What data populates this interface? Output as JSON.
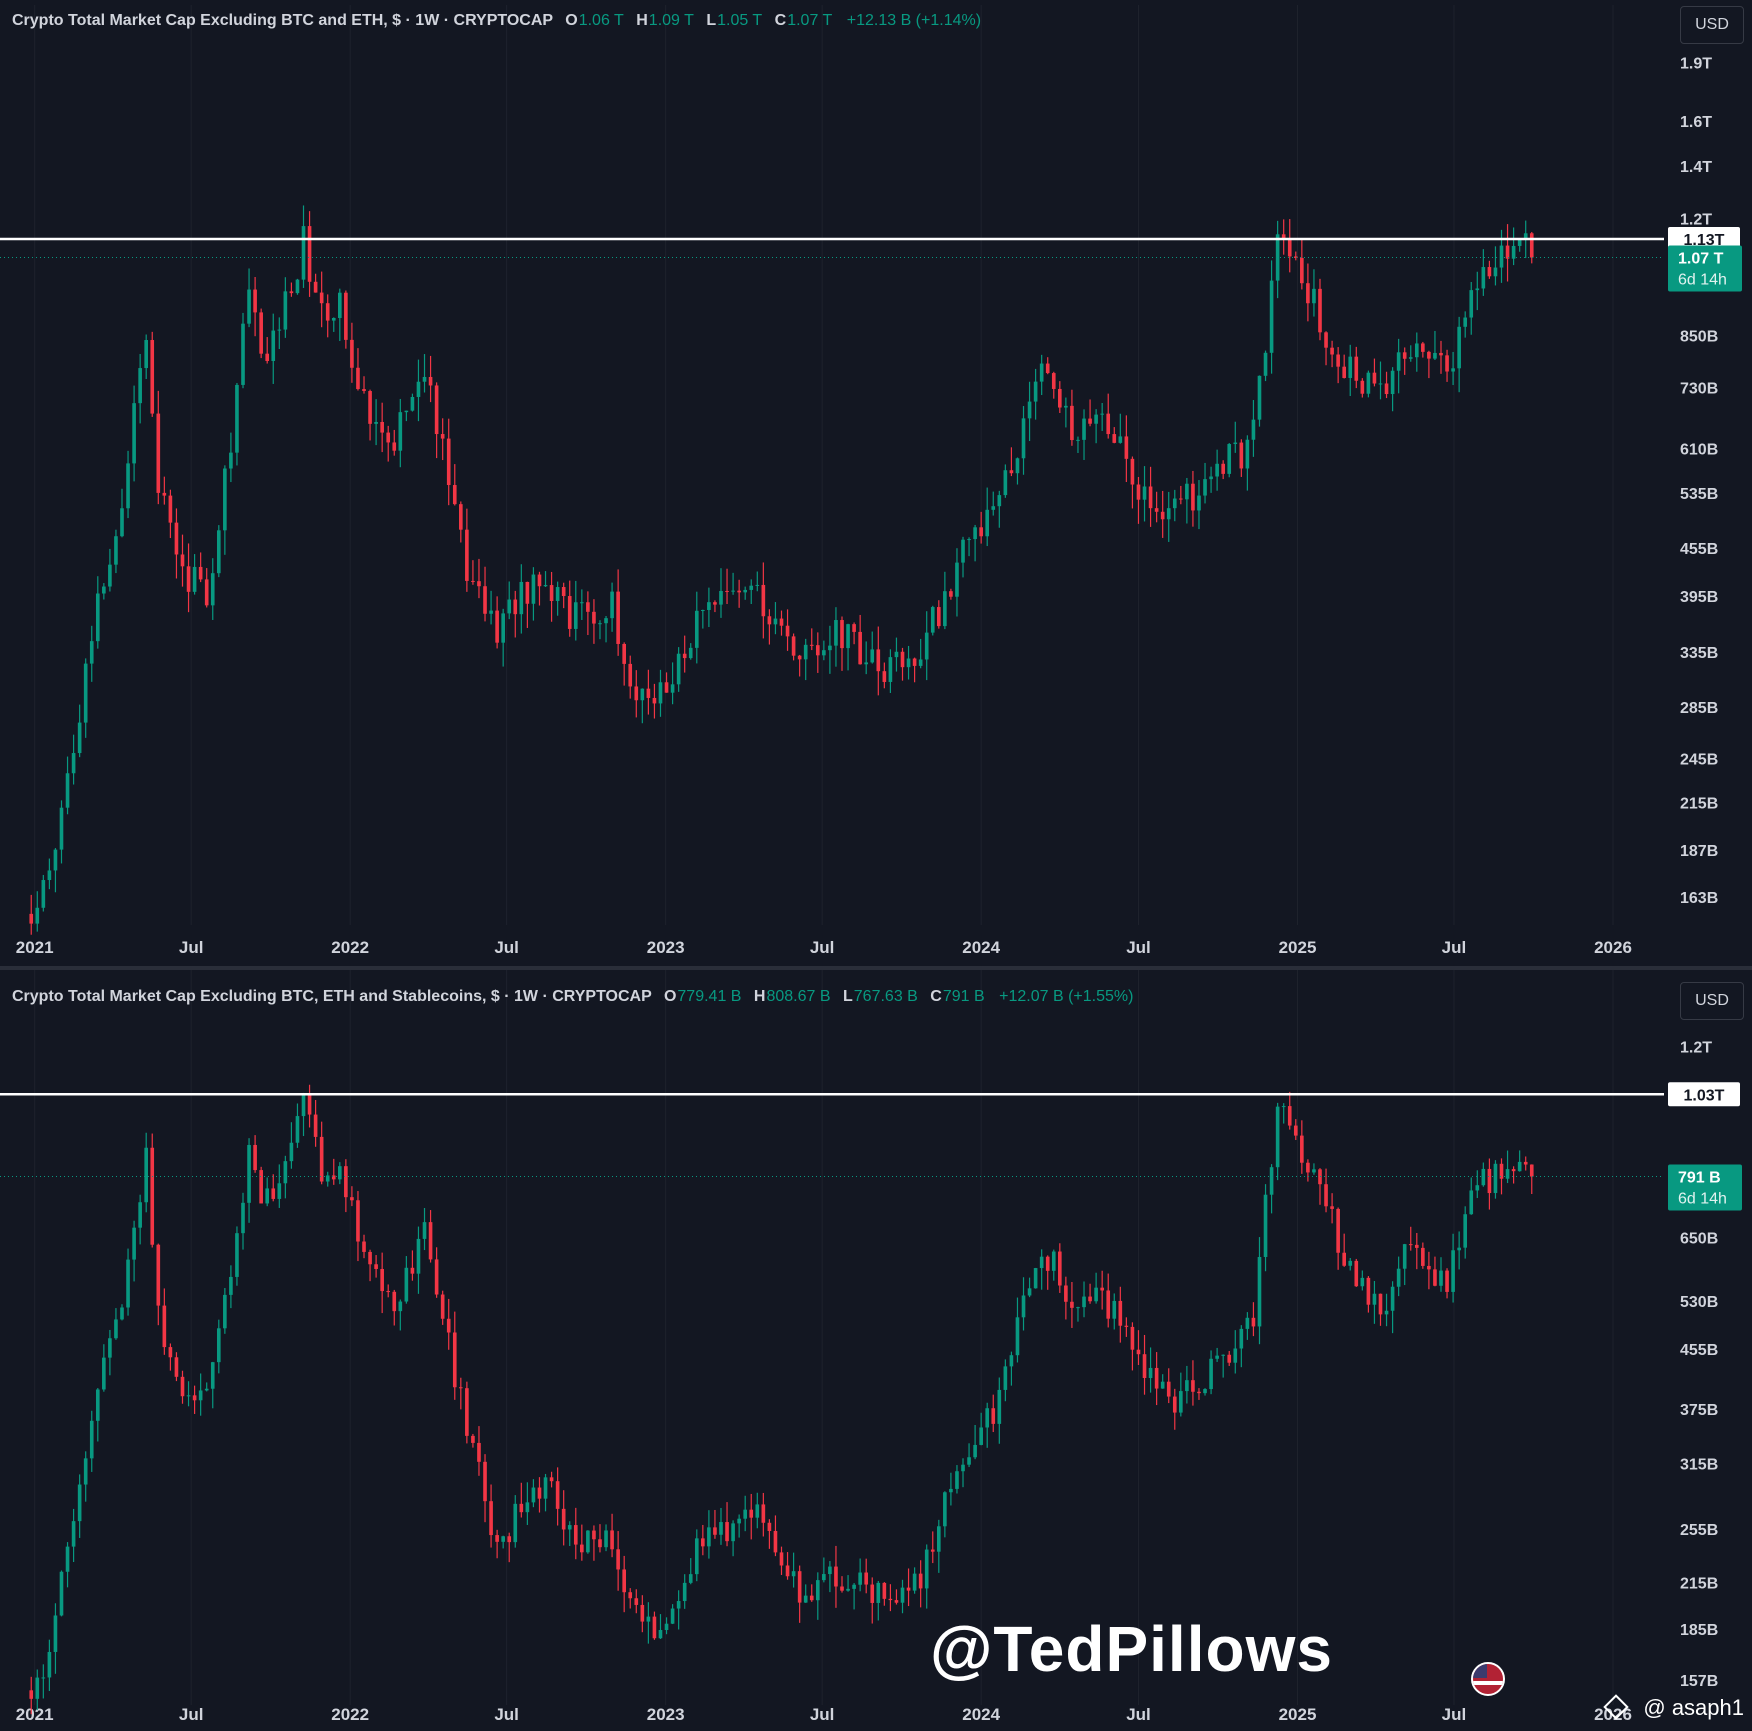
{
  "colors": {
    "background": "#131722",
    "up": "#089981",
    "down": "#f23645",
    "resistance": "#ffffff",
    "grid": "#1e222d"
  },
  "charts": [
    {
      "legend": {
        "title": "Crypto Total Market Cap Excluding BTC and ETH, $ · 1W · CRYPTOCAP",
        "o_label": "O",
        "o": "1.06 T",
        "h_label": "H",
        "h": "1.09 T",
        "l_label": "L",
        "l": "1.05 T",
        "c_label": "C",
        "c": "1.07 T",
        "change": "+12.13 B (+1.14%)"
      },
      "currency_button": "USD",
      "y_ticks": [
        "1.9T",
        "1.6T",
        "1.4T",
        "1.2T",
        "850B",
        "730B",
        "610B",
        "535B",
        "455B",
        "395B",
        "335B",
        "285B",
        "245B",
        "215B",
        "187B",
        "163B"
      ],
      "x_ticks": [
        "2021",
        "Jul",
        "2022",
        "Jul",
        "2023",
        "Jul",
        "2024",
        "Jul",
        "2025",
        "Jul",
        "2026"
      ],
      "resistance_label": "1.13T",
      "last_price_label": "1.07 T",
      "countdown": "6d 14h"
    },
    {
      "legend": {
        "title": "Crypto Total Market Cap Excluding BTC, ETH and Stablecoins, $ · 1W · CRYPTOCAP",
        "o_label": "O",
        "o": "779.41 B",
        "h_label": "H",
        "h": "808.67 B",
        "l_label": "L",
        "l": "767.63 B",
        "c_label": "C",
        "c": "791 B",
        "change": "+12.07 B (+1.55%)"
      },
      "currency_button": "USD",
      "y_ticks": [
        "1.2T",
        "650B",
        "530B",
        "455B",
        "375B",
        "315B",
        "255B",
        "215B",
        "185B",
        "157B"
      ],
      "x_ticks": [
        "2021",
        "Jul",
        "2022",
        "Jul",
        "2023",
        "Jul",
        "2024",
        "Jul",
        "2025",
        "Jul",
        "2026"
      ],
      "resistance_label": "1.03T",
      "last_price_label": "791 B",
      "countdown": "6d 14h"
    }
  ],
  "chart_data": [
    {
      "type": "candlestick",
      "title": "Crypto Total Market Cap Excluding BTC and ETH, $ · 1W · CRYPTOCAP",
      "scale": "log",
      "ylim": [
        150,
        2000
      ],
      "xlim": [
        "2020-12-15",
        "2026-03-01"
      ],
      "resistance": 1130,
      "last": 1070,
      "path": [
        [
          "2020-12-28",
          155
        ],
        [
          "2021-01-18",
          175
        ],
        [
          "2021-02-15",
          260
        ],
        [
          "2021-03-15",
          390
        ],
        [
          "2021-04-15",
          550
        ],
        [
          "2021-05-10",
          880
        ],
        [
          "2021-05-24",
          560
        ],
        [
          "2021-06-20",
          430
        ],
        [
          "2021-07-20",
          400
        ],
        [
          "2021-08-15",
          620
        ],
        [
          "2021-09-05",
          950
        ],
        [
          "2021-09-25",
          780
        ],
        [
          "2021-11-08",
          1120
        ],
        [
          "2021-12-01",
          880
        ],
        [
          "2021-12-20",
          920
        ],
        [
          "2022-01-20",
          700
        ],
        [
          "2022-02-20",
          630
        ],
        [
          "2022-03-28",
          780
        ],
        [
          "2022-05-10",
          450
        ],
        [
          "2022-06-18",
          360
        ],
        [
          "2022-08-12",
          430
        ],
        [
          "2022-09-15",
          370
        ],
        [
          "2022-11-01",
          380
        ],
        [
          "2022-11-15",
          310
        ],
        [
          "2022-12-30",
          290
        ],
        [
          "2023-02-15",
          380
        ],
        [
          "2023-04-15",
          400
        ],
        [
          "2023-06-10",
          325
        ],
        [
          "2023-07-14",
          360
        ],
        [
          "2023-09-10",
          315
        ],
        [
          "2023-10-20",
          330
        ],
        [
          "2023-12-10",
          450
        ],
        [
          "2024-01-15",
          500
        ],
        [
          "2024-03-12",
          780
        ],
        [
          "2024-04-15",
          650
        ],
        [
          "2024-05-20",
          680
        ],
        [
          "2024-07-05",
          540
        ],
        [
          "2024-08-05",
          500
        ],
        [
          "2024-10-15",
          590
        ],
        [
          "2024-11-10",
          620
        ],
        [
          "2024-12-08",
          1120
        ],
        [
          "2025-01-15",
          950
        ],
        [
          "2025-02-25",
          780
        ],
        [
          "2025-04-08",
          700
        ],
        [
          "2025-05-15",
          850
        ],
        [
          "2025-06-22",
          760
        ],
        [
          "2025-07-25",
          1000
        ],
        [
          "2025-08-25",
          1060
        ],
        [
          "2025-09-20",
          1140
        ],
        [
          "2025-10-05",
          1070
        ]
      ]
    },
    {
      "type": "candlestick",
      "title": "Crypto Total Market Cap Excluding BTC, ETH and Stablecoins, $ · 1W · CRYPTOCAP",
      "scale": "log",
      "ylim": [
        145,
        1350
      ],
      "xlim": [
        "2020-12-15",
        "2026-03-01"
      ],
      "resistance": 1030,
      "last": 791,
      "path": [
        [
          "2020-12-28",
          152
        ],
        [
          "2021-01-18",
          175
        ],
        [
          "2021-02-15",
          260
        ],
        [
          "2021-03-15",
          400
        ],
        [
          "2021-04-15",
          560
        ],
        [
          "2021-05-10",
          860
        ],
        [
          "2021-05-24",
          500
        ],
        [
          "2021-06-20",
          410
        ],
        [
          "2021-07-20",
          380
        ],
        [
          "2021-08-15",
          580
        ],
        [
          "2021-09-05",
          860
        ],
        [
          "2021-09-25",
          720
        ],
        [
          "2021-11-08",
          1000
        ],
        [
          "2021-12-01",
          790
        ],
        [
          "2021-12-20",
          800
        ],
        [
          "2022-01-20",
          590
        ],
        [
          "2022-02-20",
          520
        ],
        [
          "2022-03-28",
          660
        ],
        [
          "2022-05-10",
          380
        ],
        [
          "2022-06-18",
          240
        ],
        [
          "2022-08-12",
          300
        ],
        [
          "2022-09-15",
          245
        ],
        [
          "2022-11-01",
          250
        ],
        [
          "2022-11-15",
          200
        ],
        [
          "2022-12-30",
          180
        ],
        [
          "2023-02-15",
          255
        ],
        [
          "2023-04-15",
          265
        ],
        [
          "2023-06-10",
          200
        ],
        [
          "2023-07-14",
          225
        ],
        [
          "2023-09-10",
          205
        ],
        [
          "2023-10-20",
          215
        ],
        [
          "2023-12-10",
          330
        ],
        [
          "2024-01-15",
          375
        ],
        [
          "2024-03-12",
          640
        ],
        [
          "2024-04-15",
          520
        ],
        [
          "2024-05-20",
          550
        ],
        [
          "2024-07-05",
          420
        ],
        [
          "2024-08-05",
          380
        ],
        [
          "2024-10-15",
          450
        ],
        [
          "2024-11-10",
          500
        ],
        [
          "2024-12-08",
          1000
        ],
        [
          "2025-01-15",
          820
        ],
        [
          "2025-02-25",
          620
        ],
        [
          "2025-04-08",
          520
        ],
        [
          "2025-05-15",
          640
        ],
        [
          "2025-06-22",
          560
        ],
        [
          "2025-07-25",
          760
        ],
        [
          "2025-08-25",
          800
        ],
        [
          "2025-09-20",
          860
        ],
        [
          "2025-10-05",
          791
        ]
      ]
    }
  ],
  "watermark": "@TedPillows",
  "credit": "@ asaph1"
}
